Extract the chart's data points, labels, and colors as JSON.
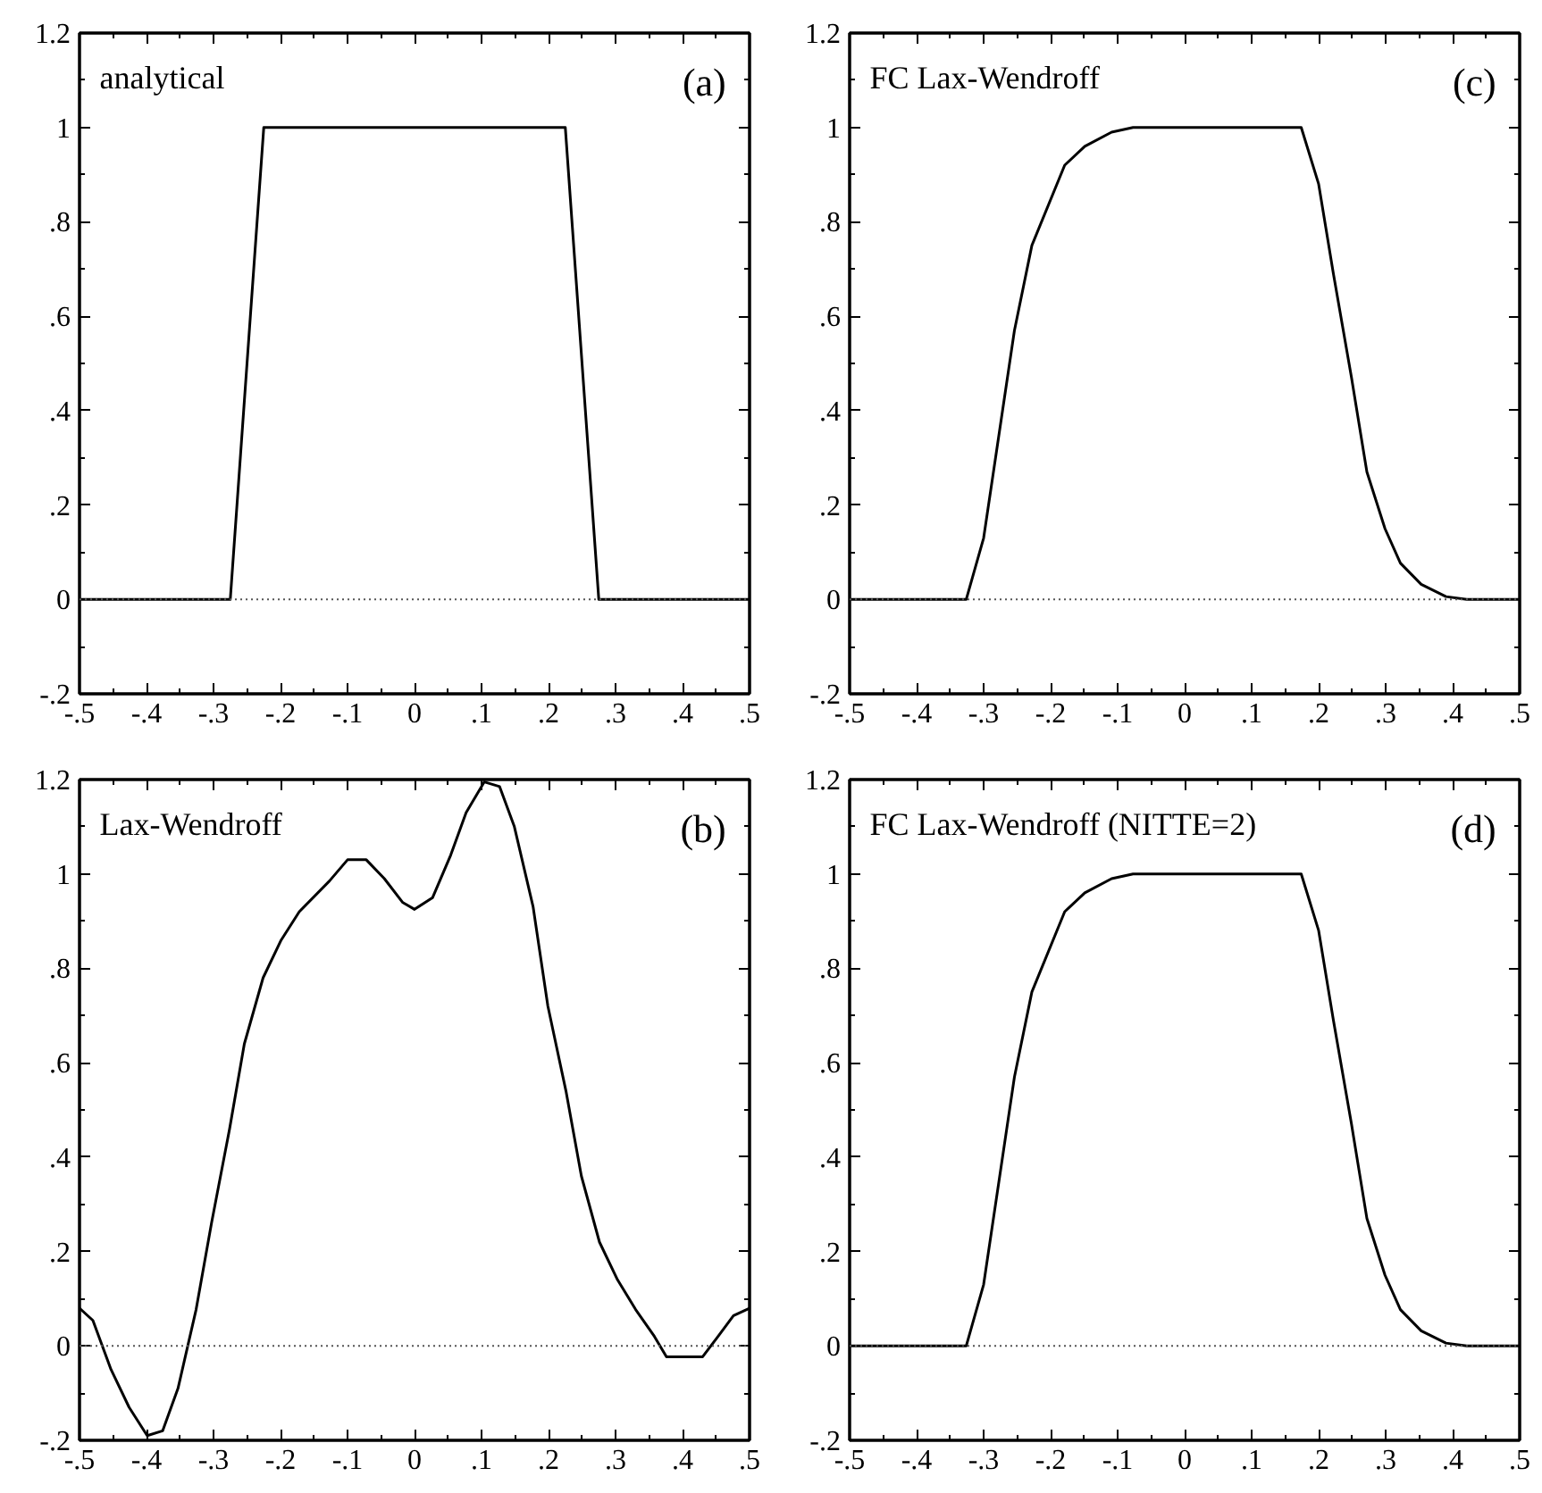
{
  "chart_data": [
    {
      "type": "line",
      "annotations": [
        "analytical",
        "(a)"
      ],
      "x": [
        -0.5,
        -0.275,
        -0.225,
        0.225,
        0.275,
        0.5
      ],
      "series": [
        {
          "color": "#000000",
          "values": [
            0,
            0,
            1,
            1,
            0,
            0
          ]
        }
      ],
      "xlim": [
        -0.5,
        0.5
      ],
      "ylim": [
        -0.2,
        1.2
      ],
      "xticks": [
        {
          "value": -0.5,
          "label": "-.5"
        },
        {
          "value": -0.4,
          "label": "-.4"
        },
        {
          "value": -0.3,
          "label": "-.3"
        },
        {
          "value": -0.2,
          "label": "-.2"
        },
        {
          "value": -0.1,
          "label": "-.1"
        },
        0,
        {
          "value": 0.1,
          "label": ".1"
        },
        {
          "value": 0.2,
          "label": ".2"
        },
        {
          "value": 0.3,
          "label": ".3"
        },
        {
          "value": 0.4,
          "label": ".4"
        },
        {
          "value": 0.5,
          "label": ".5"
        }
      ],
      "yticks": [
        {
          "value": -0.2,
          "label": "-.2"
        },
        0,
        {
          "value": 0.2,
          "label": ".2"
        },
        {
          "value": 0.4,
          "label": ".4"
        },
        {
          "value": 0.6,
          "label": ".6"
        },
        {
          "value": 0.8,
          "label": ".8"
        },
        1,
        1.2
      ],
      "ref_lines": [
        {
          "axis": "y",
          "value": 0,
          "line_style": "dotted",
          "color": "#555555"
        }
      ]
    },
    {
      "type": "line",
      "annotations": [
        "FC Lax-Wendroff",
        "(c)"
      ],
      "x": [
        -0.5,
        -0.326,
        -0.3,
        -0.254,
        -0.228,
        -0.179,
        -0.149,
        -0.109,
        -0.077,
        0.174,
        0.2,
        0.222,
        0.249,
        0.272,
        0.299,
        0.322,
        0.353,
        0.39,
        0.421,
        0.5
      ],
      "series": [
        {
          "color": "#000000",
          "values": [
            0,
            0,
            0.13,
            0.57,
            0.75,
            0.92,
            0.96,
            0.99,
            1,
            1,
            0.88,
            0.69,
            0.47,
            0.27,
            0.15,
            0.077,
            0.032,
            0.006,
            0,
            0
          ]
        }
      ],
      "xlim": [
        -0.5,
        0.5
      ],
      "ylim": [
        -0.2,
        1.2
      ],
      "xticks": [
        {
          "value": -0.5,
          "label": "-.5"
        },
        {
          "value": -0.4,
          "label": "-.4"
        },
        {
          "value": -0.3,
          "label": "-.3"
        },
        {
          "value": -0.2,
          "label": "-.2"
        },
        {
          "value": -0.1,
          "label": "-.1"
        },
        0,
        {
          "value": 0.1,
          "label": ".1"
        },
        {
          "value": 0.2,
          "label": ".2"
        },
        {
          "value": 0.3,
          "label": ".3"
        },
        {
          "value": 0.4,
          "label": ".4"
        },
        {
          "value": 0.5,
          "label": ".5"
        }
      ],
      "yticks": [
        {
          "value": -0.2,
          "label": "-.2"
        },
        0,
        {
          "value": 0.2,
          "label": ".2"
        },
        {
          "value": 0.4,
          "label": ".4"
        },
        {
          "value": 0.6,
          "label": ".6"
        },
        {
          "value": 0.8,
          "label": ".8"
        },
        1,
        1.2
      ],
      "ref_lines": [
        {
          "axis": "y",
          "value": 0,
          "line_style": "dotted",
          "color": "#555555"
        }
      ]
    },
    {
      "type": "line",
      "annotations": [
        "Lax-Wendroff",
        "(b)"
      ],
      "x": [
        -0.5,
        -0.48,
        -0.453,
        -0.426,
        -0.399,
        -0.376,
        -0.353,
        -0.326,
        -0.303,
        -0.276,
        -0.254,
        -0.226,
        -0.199,
        -0.172,
        -0.127,
        -0.1,
        -0.072,
        -0.045,
        -0.018,
        0,
        0.027,
        0.054,
        0.077,
        0.104,
        0.127,
        0.149,
        0.177,
        0.199,
        0.226,
        0.249,
        0.276,
        0.303,
        0.33,
        0.358,
        0.376,
        0.43,
        0.453,
        0.476,
        0.5
      ],
      "series": [
        {
          "color": "#000000",
          "values": [
            0.08,
            0.054,
            -0.05,
            -0.13,
            -0.19,
            -0.18,
            -0.09,
            0.077,
            0.26,
            0.46,
            0.64,
            0.78,
            0.86,
            0.92,
            0.985,
            1.03,
            1.03,
            0.99,
            0.94,
            0.925,
            0.95,
            1.04,
            1.13,
            1.195,
            1.185,
            1.1,
            0.93,
            0.72,
            0.54,
            0.36,
            0.22,
            0.14,
            0.077,
            0.02,
            -0.023,
            -0.023,
            0.02,
            0.064,
            0.08
          ]
        }
      ],
      "xlim": [
        -0.5,
        0.5
      ],
      "ylim": [
        -0.2,
        1.2
      ],
      "xticks": [
        {
          "value": -0.5,
          "label": "-.5"
        },
        {
          "value": -0.4,
          "label": "-.4"
        },
        {
          "value": -0.3,
          "label": "-.3"
        },
        {
          "value": -0.2,
          "label": "-.2"
        },
        {
          "value": -0.1,
          "label": "-.1"
        },
        0,
        {
          "value": 0.1,
          "label": ".1"
        },
        {
          "value": 0.2,
          "label": ".2"
        },
        {
          "value": 0.3,
          "label": ".3"
        },
        {
          "value": 0.4,
          "label": ".4"
        },
        {
          "value": 0.5,
          "label": ".5"
        }
      ],
      "yticks": [
        {
          "value": -0.2,
          "label": "-.2"
        },
        0,
        {
          "value": 0.2,
          "label": ".2"
        },
        {
          "value": 0.4,
          "label": ".4"
        },
        {
          "value": 0.6,
          "label": ".6"
        },
        {
          "value": 0.8,
          "label": ".8"
        },
        1,
        1.2
      ],
      "ref_lines": [
        {
          "axis": "y",
          "value": 0,
          "line_style": "dotted",
          "color": "#555555"
        }
      ]
    },
    {
      "type": "line",
      "annotations": [
        "FC Lax-Wendroff (NITTE=2)",
        "(d)"
      ],
      "x": [
        -0.5,
        -0.326,
        -0.3,
        -0.254,
        -0.228,
        -0.179,
        -0.149,
        -0.109,
        -0.077,
        0.174,
        0.2,
        0.222,
        0.249,
        0.272,
        0.299,
        0.322,
        0.353,
        0.39,
        0.421,
        0.5
      ],
      "series": [
        {
          "color": "#000000",
          "values": [
            0,
            0,
            0.13,
            0.57,
            0.75,
            0.92,
            0.96,
            0.99,
            1,
            1,
            0.88,
            0.69,
            0.47,
            0.27,
            0.15,
            0.077,
            0.032,
            0.006,
            0,
            0
          ]
        }
      ],
      "xlim": [
        -0.5,
        0.5
      ],
      "ylim": [
        -0.2,
        1.2
      ],
      "xticks": [
        {
          "value": -0.5,
          "label": "-.5"
        },
        {
          "value": -0.4,
          "label": "-.4"
        },
        {
          "value": -0.3,
          "label": "-.3"
        },
        {
          "value": -0.2,
          "label": "-.2"
        },
        {
          "value": -0.1,
          "label": "-.1"
        },
        0,
        {
          "value": 0.1,
          "label": ".1"
        },
        {
          "value": 0.2,
          "label": ".2"
        },
        {
          "value": 0.3,
          "label": ".3"
        },
        {
          "value": 0.4,
          "label": ".4"
        },
        {
          "value": 0.5,
          "label": ".5"
        }
      ],
      "yticks": [
        {
          "value": -0.2,
          "label": "-.2"
        },
        0,
        {
          "value": 0.2,
          "label": ".2"
        },
        {
          "value": 0.4,
          "label": ".4"
        },
        {
          "value": 0.6,
          "label": ".6"
        },
        {
          "value": 0.8,
          "label": ".8"
        },
        1,
        1.2
      ],
      "ref_lines": [
        {
          "axis": "y",
          "value": 0,
          "line_style": "dotted",
          "color": "#555555"
        }
      ]
    }
  ]
}
